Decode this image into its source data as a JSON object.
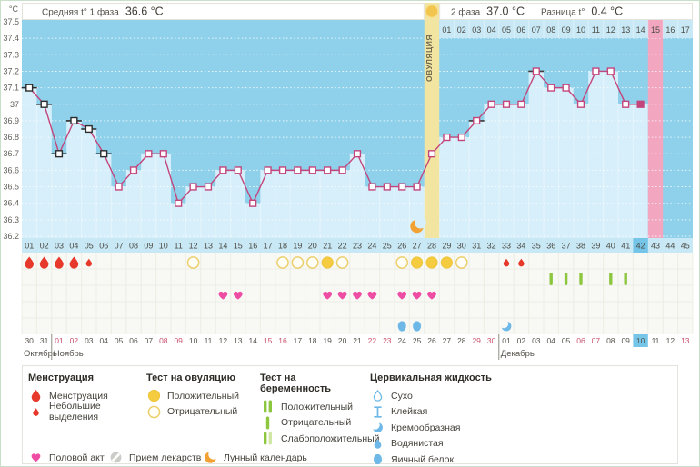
{
  "header": {
    "unit": "°C",
    "avg_phase1_label": "Средняя t° 1 фаза",
    "avg_phase1_value": "36.6 °C",
    "phase2_label": "2 фаза",
    "phase2_value": "37.0 °C",
    "diff_label": "Разница t°",
    "diff_value": "0.4 °C",
    "ovulation_label": "ОВУЛЯЦИЯ"
  },
  "colors": {
    "line": "#c3457b",
    "chart_bg": "#8fd1ea",
    "fill": "#d6effa",
    "band": "#f2e5a2",
    "pink": "#f2a6c0",
    "row_bg": "#c8e8f6",
    "today": "#74c5e7",
    "red": "#e6392b",
    "heart": "#ee4da4",
    "yellow": "#f5cc3f",
    "yellow_open": "#eccf6c",
    "green": "#8dc63f",
    "green_pale": "#cfe6a4",
    "blue": "#6db8e6",
    "moon": "#f2a233",
    "weekend": "#c9516d",
    "pill": "#cbcbc7",
    "events_bg": "#f8f8f4"
  },
  "months": [
    {
      "name": "Октябрь",
      "start_day": 1
    },
    {
      "name": "Ноябрь",
      "start_day": 3
    },
    {
      "name": "Декабрь",
      "start_day": 33
    }
  ],
  "chart_data": {
    "type": "line",
    "ylabel": "°C",
    "ylim": [
      36.2,
      37.5
    ],
    "ytick_step": 0.1,
    "yticks": [
      "37.5",
      "37.4",
      "37.3",
      "37.2",
      "37.1",
      "37",
      "36.9",
      "36.8",
      "36.7",
      "36.6",
      "36.5",
      "36.4",
      "36.3",
      "36.2"
    ],
    "ovulation_day": 28,
    "expected_period_day": 43,
    "today_day": 42,
    "days": [
      {
        "d": "01",
        "date": "30",
        "temp": 37.1,
        "m": "diff-black",
        "mens": "big"
      },
      {
        "d": "02",
        "date": "31",
        "temp": 37.0,
        "m": "diff-black",
        "mens": "big"
      },
      {
        "d": "03",
        "date": "01",
        "red": true,
        "temp": 36.7,
        "m": "diff-black",
        "mens": "big"
      },
      {
        "d": "04",
        "date": "02",
        "red": true,
        "temp": 36.9,
        "m": "diff-black",
        "mens": "big"
      },
      {
        "d": "05",
        "date": "03",
        "temp": 36.85,
        "m": "diff-black",
        "mens": "small"
      },
      {
        "d": "06",
        "date": "04",
        "temp": 36.7,
        "m": "diff-black"
      },
      {
        "d": "07",
        "date": "05",
        "temp": 36.5
      },
      {
        "d": "08",
        "date": "06",
        "temp": 36.6
      },
      {
        "d": "09",
        "date": "07",
        "temp": 36.7
      },
      {
        "d": "10",
        "date": "08",
        "red": true,
        "temp": 36.7
      },
      {
        "d": "11",
        "date": "09",
        "red": true,
        "temp": 36.4
      },
      {
        "d": "12",
        "date": "10",
        "temp": 36.5,
        "ovu": "neg"
      },
      {
        "d": "13",
        "date": "11",
        "temp": 36.5
      },
      {
        "d": "14",
        "date": "12",
        "temp": 36.6,
        "sex": true
      },
      {
        "d": "15",
        "date": "13",
        "temp": 36.6,
        "sex": true
      },
      {
        "d": "16",
        "date": "14",
        "temp": 36.4
      },
      {
        "d": "17",
        "date": "15",
        "red": true,
        "temp": 36.6
      },
      {
        "d": "18",
        "date": "16",
        "red": true,
        "temp": 36.6,
        "ovu": "neg"
      },
      {
        "d": "19",
        "date": "17",
        "temp": 36.6,
        "ovu": "neg"
      },
      {
        "d": "20",
        "date": "18",
        "temp": 36.6,
        "ovu": "neg"
      },
      {
        "d": "21",
        "date": "19",
        "temp": 36.6,
        "ovu": "pos",
        "sex": true
      },
      {
        "d": "22",
        "date": "20",
        "temp": 36.6,
        "ovu": "neg",
        "sex": true
      },
      {
        "d": "23",
        "date": "21",
        "temp": 36.7,
        "sex": true
      },
      {
        "d": "24",
        "date": "22",
        "red": true,
        "temp": 36.5,
        "sex": true
      },
      {
        "d": "25",
        "date": "23",
        "red": true,
        "temp": 36.5
      },
      {
        "d": "26",
        "date": "24",
        "temp": 36.5,
        "ovu": "neg",
        "sex": true,
        "cf": "eggwhite"
      },
      {
        "d": "27",
        "date": "25",
        "temp": 36.5,
        "ovu": "pos",
        "sex": true,
        "cf": "eggwhite",
        "moon": true
      },
      {
        "d": "28",
        "date": "26",
        "temp": 36.7,
        "ovu": "pos",
        "sex": true,
        "ovulation": true
      },
      {
        "d": "29",
        "p2": "01",
        "date": "27",
        "temp": 36.8,
        "ovu": "pos"
      },
      {
        "d": "30",
        "p2": "02",
        "date": "28",
        "temp": 36.8,
        "ovu": "neg"
      },
      {
        "d": "31",
        "p2": "03",
        "date": "29",
        "red": true,
        "temp": 36.9,
        "m": "diff"
      },
      {
        "d": "32",
        "p2": "04",
        "date": "30",
        "red": true,
        "temp": 37.0
      },
      {
        "d": "33",
        "p2": "05",
        "date": "01",
        "temp": 37.0,
        "mens": "small",
        "cf": "creamy"
      },
      {
        "d": "34",
        "p2": "06",
        "date": "02",
        "temp": 37.0,
        "mens": "small"
      },
      {
        "d": "35",
        "p2": "07",
        "date": "03",
        "temp": 37.2,
        "m": "diff"
      },
      {
        "d": "36",
        "p2": "08",
        "date": "04",
        "temp": 37.1,
        "preg": "neg"
      },
      {
        "d": "37",
        "p2": "09",
        "date": "05",
        "temp": 37.1,
        "preg": "neg"
      },
      {
        "d": "38",
        "p2": "10",
        "date": "06",
        "red": true,
        "temp": 37.0,
        "preg": "neg"
      },
      {
        "d": "39",
        "p2": "11",
        "date": "07",
        "red": true,
        "temp": 37.2
      },
      {
        "d": "40",
        "p2": "12",
        "date": "08",
        "temp": 37.2,
        "preg": "neg"
      },
      {
        "d": "41",
        "p2": "13",
        "date": "09",
        "temp": 37.0,
        "preg": "neg"
      },
      {
        "d": "42",
        "p2": "14",
        "date": "10",
        "temp": 37.0,
        "m": "today",
        "today": true
      },
      {
        "d": "43",
        "p2": "15",
        "date": "11",
        "expected_period": true
      },
      {
        "d": "44",
        "p2": "16",
        "date": "12"
      },
      {
        "d": "45",
        "p2": "17",
        "date": "13",
        "red": true
      }
    ]
  },
  "legend": {
    "menstruation": {
      "title": "Менструация",
      "items": [
        {
          "icon": "drop-big",
          "label": "Менструация"
        },
        {
          "icon": "drop-small",
          "label": "Небольшие выделения"
        }
      ]
    },
    "ovulation_test": {
      "title": "Тест на овуляцию",
      "items": [
        {
          "icon": "circle-filled",
          "label": "Положительный"
        },
        {
          "icon": "circle-open",
          "label": "Отрицательный"
        }
      ]
    },
    "pregnancy_test": {
      "title": "Тест на беременность",
      "items": [
        {
          "icon": "bars-two",
          "label": "Положительный"
        },
        {
          "icon": "bar-one",
          "label": "Отрицательный"
        },
        {
          "icon": "bars-weak",
          "label": "Слабоположительный"
        }
      ]
    },
    "cervical_fluid": {
      "title": "Цервикальная жидкость",
      "items": [
        {
          "icon": "cf-dry",
          "label": "Сухо"
        },
        {
          "icon": "cf-sticky",
          "label": "Клейкая"
        },
        {
          "icon": "cf-creamy",
          "label": "Кремообразная"
        },
        {
          "icon": "cf-watery",
          "label": "Водянистая"
        },
        {
          "icon": "cf-eggwhite",
          "label": "Яичный белок"
        }
      ]
    },
    "extra": [
      {
        "icon": "heart",
        "label": "Половой акт"
      },
      {
        "icon": "pill",
        "label": "Прием лекарств"
      },
      {
        "icon": "moon",
        "label": "Лунный календарь"
      }
    ]
  }
}
